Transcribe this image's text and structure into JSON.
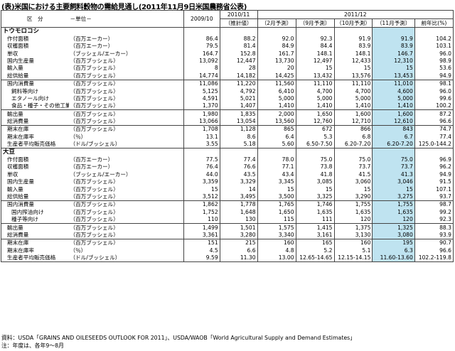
{
  "title": "(表)米国における主要飼料穀物の需給見通し(2011年11月9日米国農務省公表)",
  "header": {
    "kubun": "区　分",
    "unit": "－単位－",
    "y2009": "2009/10",
    "y2010": "2010/11",
    "y2011": "2011/12",
    "h_est": "（推計値）",
    "h_feb": "（2月予測）",
    "h_sep": "（9月予測）",
    "h_oct": "（10月予測）",
    "h_nov": "（11月予測）",
    "h_yoy": "前年比(%)"
  },
  "sections": [
    {
      "name": "トウモロコシ",
      "rows": [
        {
          "label": "作付面積",
          "indent": 1,
          "unit": "（百万エーカー）",
          "v": [
            "86.4",
            "88.2",
            "92.0",
            "92.3",
            "91.9",
            "91.9",
            "104.2"
          ]
        },
        {
          "label": "収穫面積",
          "indent": 1,
          "unit": "（百万エーカー）",
          "v": [
            "79.5",
            "81.4",
            "84.9",
            "84.4",
            "83.9",
            "83.9",
            "103.1"
          ]
        },
        {
          "label": "単収",
          "indent": 1,
          "unit": "（ブッシェル/エーカー）",
          "v": [
            "164.7",
            "152.8",
            "161.7",
            "148.1",
            "148.1",
            "146.7",
            "96.0"
          ]
        },
        {
          "label": "国内生産量",
          "indent": 1,
          "unit": "（百万ブッシェル）",
          "v": [
            "13,092",
            "12,447",
            "13,730",
            "12,497",
            "12,433",
            "12,310",
            "98.9"
          ]
        },
        {
          "label": "輸入量",
          "indent": 1,
          "unit": "（百万ブッシェル）",
          "v": [
            "8",
            "28",
            "20",
            "15",
            "15",
            "15",
            "53.6"
          ]
        },
        {
          "label": "総供給量",
          "indent": 1,
          "unit": "（百万ブッシェル）",
          "v": [
            "14,774",
            "14,182",
            "14,425",
            "13,432",
            "13,576",
            "13,453",
            "94.9"
          ]
        },
        {
          "label": "国内消費量",
          "indent": 1,
          "unit": "（百万ブッシェル）",
          "v": [
            "11,086",
            "11,220",
            "11,560",
            "11,110",
            "11,110",
            "11,010",
            "98.1"
          ]
        },
        {
          "label": "飼料等向け",
          "indent": 2,
          "unit": "（百万ブッシェル）",
          "v": [
            "5,125",
            "4,792",
            "6,410",
            "4,700",
            "4,700",
            "4,600",
            "96.0"
          ]
        },
        {
          "label": "エタノール向け",
          "indent": 2,
          "unit": "（百万ブッシェル）",
          "v": [
            "4,591",
            "5,021",
            "5,000",
            "5,000",
            "5,000",
            "5,000",
            "99.6"
          ]
        },
        {
          "label": "食品・種子・その他工業向け",
          "indent": 2,
          "unit": "（百万ブッシェル）",
          "v": [
            "1,370",
            "1,407",
            "1,410",
            "1,410",
            "1,410",
            "1,410",
            "100.2"
          ]
        },
        {
          "label": "輸出量",
          "indent": 1,
          "unit": "（百万ブッシェル）",
          "v": [
            "1,980",
            "1,835",
            "2,000",
            "1,650",
            "1,600",
            "1,600",
            "87.2"
          ]
        },
        {
          "label": "総消費量",
          "indent": 1,
          "unit": "（百万ブッシェル）",
          "v": [
            "13,066",
            "13,054",
            "13,560",
            "12,760",
            "12,710",
            "12,610",
            "96.6"
          ]
        },
        {
          "label": "期末在庫",
          "indent": 1,
          "unit": "（百万ブッシェル）",
          "v": [
            "1,708",
            "1,128",
            "865",
            "672",
            "866",
            "843",
            "74.7"
          ]
        },
        {
          "label": "期末在庫率",
          "indent": 1,
          "unit": "（％）",
          "v": [
            "13.1",
            "8.6",
            "6.4",
            "5.3",
            "6.8",
            "6.7",
            "77.4"
          ]
        },
        {
          "label": "生産者平均販売価格",
          "indent": 1,
          "unit": "（ドル/ブッシェル）",
          "v": [
            "3.55",
            "5.18",
            "5.60",
            "6.50-7.50",
            "6.20-7.20",
            "6.20-7.20",
            "125.0-144.2"
          ]
        }
      ]
    },
    {
      "name": "大豆",
      "rows": [
        {
          "label": "作付面積",
          "indent": 1,
          "unit": "（百万エーカー）",
          "v": [
            "77.5",
            "77.4",
            "78.0",
            "75.0",
            "75.0",
            "75.0",
            "96.9"
          ]
        },
        {
          "label": "収穫面積",
          "indent": 1,
          "unit": "（百万エーカー）",
          "v": [
            "76.4",
            "76.6",
            "77.1",
            "73.8",
            "73.7",
            "73.7",
            "96.2"
          ]
        },
        {
          "label": "単収",
          "indent": 1,
          "unit": "（ブッシェル/エーカー）",
          "v": [
            "44.0",
            "43.5",
            "43.4",
            "41.8",
            "41.5",
            "41.3",
            "94.9"
          ]
        },
        {
          "label": "国内生産量",
          "indent": 1,
          "unit": "（百万ブッシェル）",
          "v": [
            "3,359",
            "3,329",
            "3,345",
            "3,085",
            "3,060",
            "3,046",
            "91.5"
          ]
        },
        {
          "label": "輸入量",
          "indent": 1,
          "unit": "（百万ブッシェル）",
          "v": [
            "15",
            "14",
            "15",
            "15",
            "15",
            "15",
            "107.1"
          ]
        },
        {
          "label": "総供給量",
          "indent": 1,
          "unit": "（百万ブッシェル）",
          "v": [
            "3,512",
            "3,495",
            "3,500",
            "3,325",
            "3,290",
            "3,275",
            "93.7"
          ]
        },
        {
          "label": "国内消費量",
          "indent": 1,
          "unit": "（百万ブッシェル）",
          "v": [
            "1,862",
            "1,778",
            "1,765",
            "1,746",
            "1,755",
            "1,755",
            "98.7"
          ]
        },
        {
          "label": "国内搾油向け",
          "indent": 2,
          "unit": "（百万ブッシェル）",
          "v": [
            "1,752",
            "1,648",
            "1,650",
            "1,635",
            "1,635",
            "1,635",
            "99.2"
          ]
        },
        {
          "label": "種子等向け",
          "indent": 2,
          "unit": "（百万ブッシェル）",
          "v": [
            "110",
            "130",
            "115",
            "111",
            "120",
            "120",
            "92.3"
          ]
        },
        {
          "label": "輸出量",
          "indent": 1,
          "unit": "（百万ブッシェル）",
          "v": [
            "1,499",
            "1,501",
            "1,575",
            "1,415",
            "1,375",
            "1,325",
            "88.3"
          ]
        },
        {
          "label": "総消費量",
          "indent": 1,
          "unit": "（百万ブッシェル）",
          "v": [
            "3,361",
            "3,280",
            "3,340",
            "3,161",
            "3,130",
            "3,080",
            "93.9"
          ]
        },
        {
          "label": "期末在庫",
          "indent": 1,
          "unit": "（百万ブッシェル）",
          "v": [
            "151",
            "215",
            "160",
            "165",
            "160",
            "195",
            "90.7"
          ]
        },
        {
          "label": "期末在庫率",
          "indent": 1,
          "unit": "（％）",
          "v": [
            "4.5",
            "6.6",
            "4.8",
            "5.2",
            "5.1",
            "6.3",
            "96.6"
          ]
        },
        {
          "label": "生産者平均販売価格",
          "indent": 1,
          "unit": "（ドル/ブッシェル）",
          "v": [
            "9.59",
            "11.30",
            "13.00",
            "12.65-14.65",
            "12.15-14.15",
            "11.60-13.60",
            "102.2-119.8"
          ]
        }
      ]
    }
  ],
  "notes": {
    "source": "資料：USDA「GRAINS AND OILESEEDS OUTLOOK FOR 2011」、USDA/WAOB「World Agricultural Supply and Demand Estimates」",
    "note": "注：年度は、各年9～8月"
  },
  "highlight_color": "#bfe3f0"
}
